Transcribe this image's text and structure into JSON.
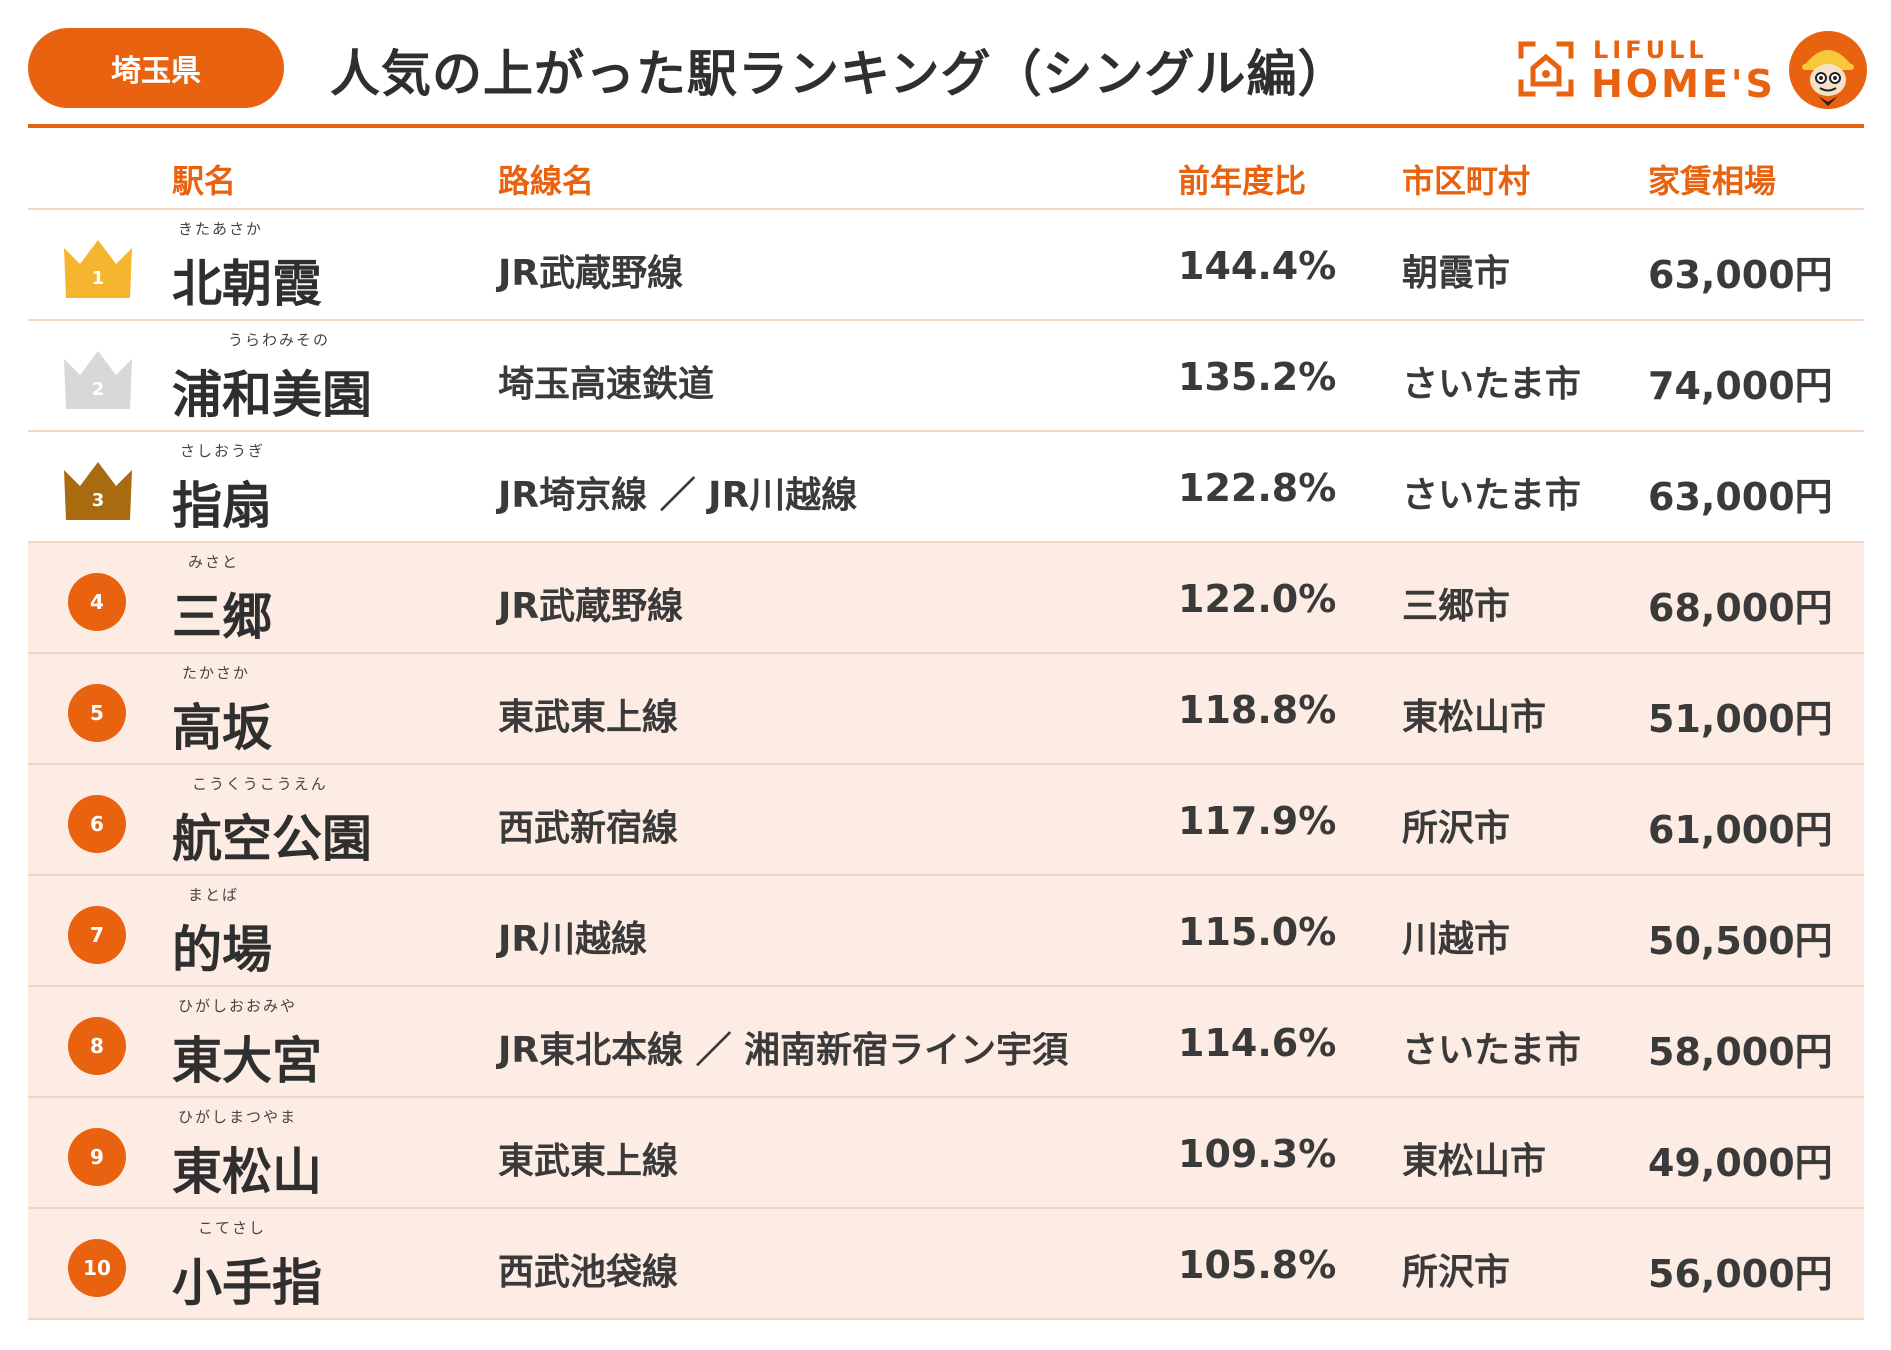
{
  "header": {
    "prefecture": "埼玉県",
    "title": "人気の上がった駅ランキング（シングル編）",
    "logo_top": "LIFULL",
    "logo_bottom": "HOME'S"
  },
  "columns": {
    "station": "駅名",
    "line": "路線名",
    "ratio": "前年度比",
    "city": "市区町村",
    "rent": "家賃相場"
  },
  "colors": {
    "accent": "#e8620f",
    "gold": "#f5b52e",
    "silver": "#d8d8d8",
    "bronze": "#a86b0f",
    "row_shade": "#fdece3"
  },
  "rows": [
    {
      "rank": "1",
      "furigana": "きたあさか",
      "station": "北朝霞",
      "line": "JR武蔵野線",
      "ratio": "144.4%",
      "city": "朝霞市",
      "rent": "63,000円"
    },
    {
      "rank": "2",
      "furigana": "うらわみその",
      "station": "浦和美園",
      "line": "埼玉高速鉄道",
      "ratio": "135.2%",
      "city": "さいたま市",
      "rent": "74,000円"
    },
    {
      "rank": "3",
      "furigana": "さしおうぎ",
      "station": "指扇",
      "line": "JR埼京線 ／ JR川越線",
      "ratio": "122.8%",
      "city": "さいたま市",
      "rent": "63,000円"
    },
    {
      "rank": "4",
      "furigana": "みさと",
      "station": "三郷",
      "line": "JR武蔵野線",
      "ratio": "122.0%",
      "city": "三郷市",
      "rent": "68,000円"
    },
    {
      "rank": "5",
      "furigana": "たかさか",
      "station": "高坂",
      "line": "東武東上線",
      "ratio": "118.8%",
      "city": "東松山市",
      "rent": "51,000円"
    },
    {
      "rank": "6",
      "furigana": "こうくうこうえん",
      "station": "航空公園",
      "line": "西武新宿線",
      "ratio": "117.9%",
      "city": "所沢市",
      "rent": "61,000円"
    },
    {
      "rank": "7",
      "furigana": "まとば",
      "station": "的場",
      "line": "JR川越線",
      "ratio": "115.0%",
      "city": "川越市",
      "rent": "50,500円"
    },
    {
      "rank": "8",
      "furigana": "ひがしおおみや",
      "station": "東大宮",
      "line": "JR東北本線 ／ 湘南新宿ライン宇須",
      "ratio": "114.6%",
      "city": "さいたま市",
      "rent": "58,000円"
    },
    {
      "rank": "9",
      "furigana": "ひがしまつやま",
      "station": "東松山",
      "line": "東武東上線",
      "ratio": "109.3%",
      "city": "東松山市",
      "rent": "49,000円"
    },
    {
      "rank": "10",
      "furigana": "こてさし",
      "station": "小手指",
      "line": "西武池袋線",
      "ratio": "105.8%",
      "city": "所沢市",
      "rent": "56,000円"
    }
  ]
}
